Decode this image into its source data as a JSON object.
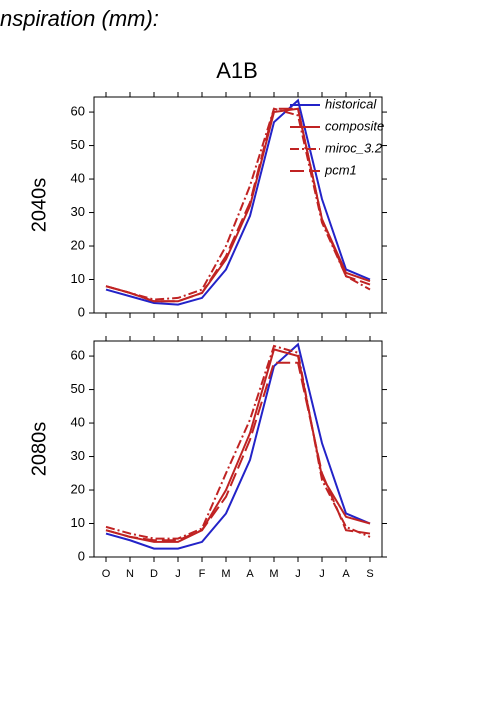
{
  "header": {
    "title": "nspiration (mm):",
    "scenario": "A1B"
  },
  "chart_data": [
    {
      "type": "line",
      "ylabel": "2040s",
      "ylim": [
        0,
        64.5
      ],
      "yticks": [
        0,
        10,
        20,
        30,
        40,
        50,
        60
      ],
      "legend": "upper right",
      "series": [
        {
          "name": "historical",
          "color": "#2323c8",
          "dash": "solid",
          "values": [
            7,
            5,
            3,
            2.5,
            4.5,
            13,
            29,
            57,
            63.5,
            34,
            13,
            10
          ]
        },
        {
          "name": "composite",
          "color": "#c02323",
          "dash": "solid",
          "values": [
            8,
            6,
            3.5,
            3.5,
            6,
            16,
            32,
            60,
            61,
            28,
            12,
            9.5
          ]
        },
        {
          "name": "miroc_3.2",
          "color": "#c02323",
          "dash": "dashdot",
          "values": [
            8,
            6,
            4,
            4.5,
            7,
            20,
            38,
            61,
            59,
            27,
            11,
            7
          ]
        },
        {
          "name": "pcm1",
          "color": "#c02323",
          "dash": "longdash",
          "values": [
            8,
            6,
            3.5,
            3.5,
            6,
            17,
            33,
            61,
            61,
            28,
            11,
            8.5
          ]
        }
      ]
    },
    {
      "type": "line",
      "ylabel": "2080s",
      "ylim": [
        0,
        64.5
      ],
      "yticks": [
        0,
        10,
        20,
        30,
        40,
        50,
        60
      ],
      "categories": [
        "O",
        "N",
        "D",
        "J",
        "F",
        "M",
        "A",
        "M",
        "J",
        "J",
        "A",
        "S"
      ],
      "series": [
        {
          "color": "#2323c8",
          "dash": "solid",
          "values": [
            7,
            5,
            2.5,
            2.5,
            4.5,
            13,
            29,
            57,
            63.5,
            34,
            13,
            10
          ]
        },
        {
          "color": "#c02323",
          "dash": "solid",
          "values": [
            8,
            6,
            4.5,
            4.5,
            8,
            20,
            37,
            62,
            60,
            24,
            12,
            10
          ]
        },
        {
          "color": "#c02323",
          "dash": "dashdot",
          "values": [
            9,
            7,
            5.5,
            5.5,
            8.5,
            25,
            41,
            63,
            61,
            23,
            9,
            6
          ]
        },
        {
          "color": "#c02323",
          "dash": "longdash",
          "values": [
            8,
            6,
            5,
            5,
            8,
            18,
            35,
            58,
            58,
            25,
            8,
            7
          ]
        }
      ]
    }
  ]
}
